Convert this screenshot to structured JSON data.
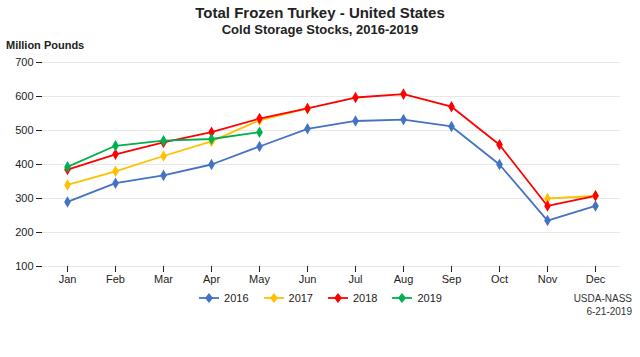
{
  "chart_data": {
    "type": "line",
    "title": "Total Frozen Turkey - United States",
    "subtitle": "Cold Storage Stocks, 2016-2019",
    "ylabel": "Million Pounds",
    "annotation": "USDA-NASS\n6-21-2019",
    "categories": [
      "Jan",
      "Feb",
      "Mar",
      "Apr",
      "May",
      "Jun",
      "Jul",
      "Aug",
      "Sep",
      "Oct",
      "Nov",
      "Dec"
    ],
    "series": [
      {
        "name": "2016",
        "color": "#4472C4",
        "values": [
          290,
          345,
          368,
          400,
          453,
          505,
          528,
          532,
          512,
          400,
          235,
          278
        ]
      },
      {
        "name": "2017",
        "color": "#FFC000",
        "values": [
          340,
          380,
          425,
          468,
          530,
          565,
          null,
          null,
          null,
          null,
          300,
          308
        ]
      },
      {
        "name": "2018",
        "color": "#FF0000",
        "values": [
          385,
          430,
          465,
          495,
          535,
          565,
          597,
          607,
          570,
          458,
          278,
          308
        ]
      },
      {
        "name": "2019",
        "color": "#00B050",
        "values": [
          393,
          455,
          470,
          475,
          495,
          null,
          null,
          null,
          null,
          null,
          null,
          null
        ]
      }
    ],
    "ylim": [
      100,
      700
    ],
    "yticks": [
      100,
      200,
      300,
      400,
      500,
      600,
      700
    ],
    "grid": true,
    "legend": "bottom",
    "marker": "diamond"
  }
}
